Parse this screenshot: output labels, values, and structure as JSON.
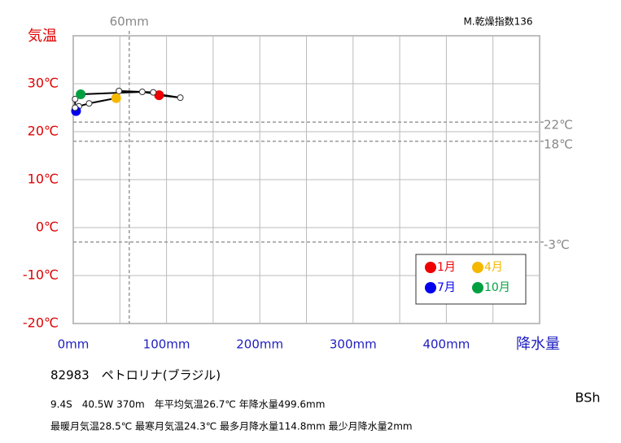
{
  "chart_data": {
    "type": "climograph",
    "index_label": "M.乾燥指数136",
    "y_label": "気温",
    "x_label": "降水量",
    "xlim": [
      0,
      500
    ],
    "ylim": [
      -20,
      40
    ],
    "xticks": [
      {
        "value": 0,
        "label": "0mm"
      },
      {
        "value": 100,
        "label": "100mm"
      },
      {
        "value": 200,
        "label": "200mm"
      },
      {
        "value": 300,
        "label": "300mm"
      },
      {
        "value": 400,
        "label": "400mm"
      }
    ],
    "x_minor_grid": [
      50,
      150,
      250,
      350,
      450,
      500
    ],
    "yticks": [
      {
        "value": -20,
        "label": "-20℃"
      },
      {
        "value": -10,
        "label": "-10℃"
      },
      {
        "value": 0,
        "label": "0℃"
      },
      {
        "value": 10,
        "label": "10℃"
      },
      {
        "value": 20,
        "label": "20℃"
      },
      {
        "value": 30,
        "label": "30℃"
      }
    ],
    "y_grid_top": 40,
    "x_reference": {
      "value": 60,
      "label": "60mm"
    },
    "y_references": [
      {
        "value": 22,
        "label": "22℃"
      },
      {
        "value": 18,
        "label": "18℃"
      },
      {
        "value": -3,
        "label": "-3℃"
      }
    ],
    "grid": true,
    "series": [
      {
        "x": [
          92,
          85.8,
          49,
          46,
          17,
          6,
          3,
          2,
          2,
          8,
          74,
          114.8
        ],
        "values": [
          27.6,
          28.2,
          28.5,
          27.0,
          25.9,
          25.3,
          24.3,
          25.0,
          26.8,
          27.8,
          28.3,
          27.1
        ],
        "color": "#000000",
        "point_colors": [
          "#ee0000",
          null,
          null,
          "#f5b800",
          null,
          null,
          "#0000ee",
          null,
          null,
          "#00a040",
          null,
          null
        ]
      }
    ],
    "legend": [
      {
        "name": "1月",
        "color": "#ee0000"
      },
      {
        "name": "4月",
        "color": "#f5b800"
      },
      {
        "name": "7月",
        "color": "#0000ee"
      },
      {
        "name": "10月",
        "color": "#00a040"
      }
    ],
    "station": "82983　ペトロリナ(ブラジル)",
    "info_lines": [
      "9.4S　40.5W 370m　年平均気温26.7℃ 年降水量499.6mm",
      "最暖月気温28.5℃ 最寒月気温24.3℃ 最多月降水量114.8mm 最少月降水量2mm"
    ],
    "climate_class": "BSh"
  }
}
